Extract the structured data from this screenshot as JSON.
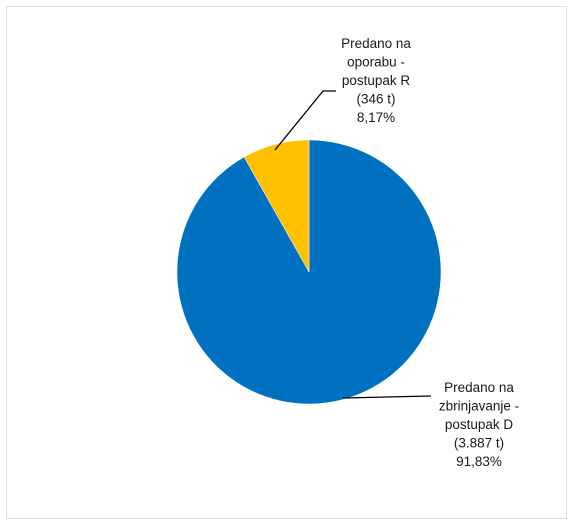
{
  "chart_data": {
    "type": "pie",
    "title": "",
    "slices": [
      {
        "label_lines": [
          "Predano na",
          "oporabu -",
          "postupak R",
          "(346 t)",
          "8,17%"
        ],
        "value": 346,
        "unit": "t",
        "percent": 8.17,
        "color": "#FFC000"
      },
      {
        "label_lines": [
          "Predano na",
          "zbrinjavanje -",
          "postupak D",
          "(3.887 t)",
          "91,83%"
        ],
        "value": 3887,
        "unit": "t",
        "percent": 91.83,
        "color": "#0070C0"
      }
    ],
    "legend": "none",
    "label_style": "outside-with-leader-lines"
  }
}
